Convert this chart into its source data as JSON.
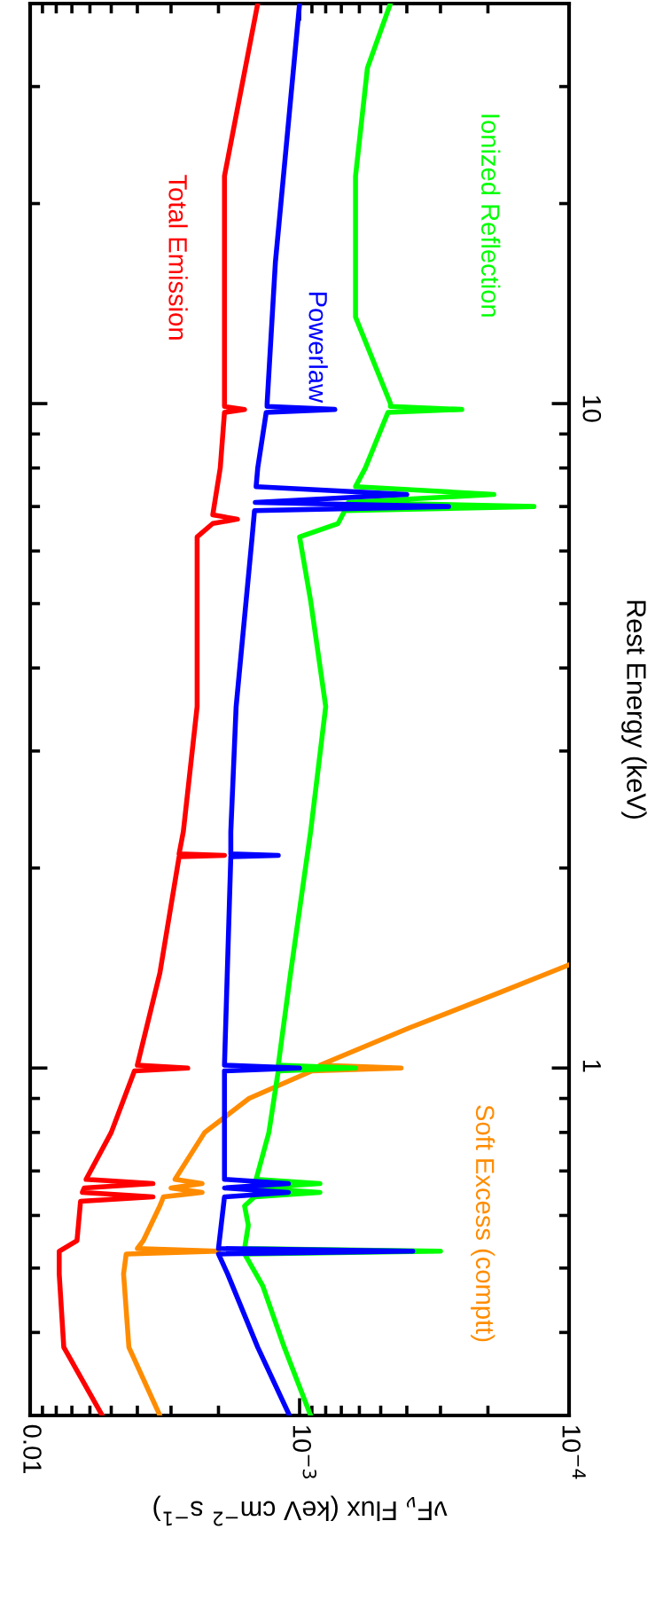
{
  "chart_data": {
    "type": "line",
    "xlabel": "νF$_{ν}$ Flux (keV cm$^{−2}$ s$^{−1}$)",
    "ylabel": "Rest Energy (keV)",
    "xlim": [
      0.01,
      0.0001
    ],
    "xticks": [
      0.01,
      {
        "value": 0.001,
        "label": "10$^{−3}$"
      },
      {
        "value": 0.0001,
        "label": "10$^{−4}$"
      }
    ],
    "ylim": [
      0.3,
      40
    ],
    "yticks": [
      1,
      10
    ],
    "log": "xy",
    "grid": false,
    "legend": false,
    "marker": "none",
    "line_style": "solid",
    "series": [
      {
        "name": "Total Emission",
        "color": "#ff0000",
        "values": [
          0.3,
          0.38,
          0.49,
          0.53,
          0.55,
          0.63,
          0.64,
          0.65,
          0.66,
          0.67,
          0.68,
          0.8,
          0.99,
          1.0,
          1.01,
          1.39,
          2.08,
          2.09,
          2.1,
          2.27,
          3.5,
          5.05,
          6.3,
          6.6,
          6.7,
          6.8,
          8.0,
          9.7,
          9.8,
          9.9,
          10,
          16.3,
          22,
          40
        ],
        "x": [
          0.0054,
          0.0075,
          0.0078,
          0.0078,
          0.0067,
          0.0065,
          0.0035,
          0.0064,
          0.0063,
          0.0035,
          0.0062,
          0.005,
          0.0041,
          0.0026,
          0.004,
          0.0033,
          0.0028,
          0.0019,
          0.0028,
          0.0027,
          0.0024,
          0.0024,
          0.0024,
          0.0021,
          0.0017,
          0.0021,
          0.00197,
          0.0019,
          0.0016,
          0.0019,
          0.0019,
          0.0019,
          0.0019,
          0.00143
        ]
      },
      {
        "name": "Powerlaw",
        "color": "#0000ff",
        "values": [
          0.3,
          0.38,
          0.49,
          0.525,
          0.53,
          0.535,
          0.64,
          0.65,
          0.66,
          0.67,
          0.68,
          0.7,
          0.99,
          1.0,
          1.01,
          2.08,
          2.09,
          2.1,
          2.27,
          3.5,
          6.3,
          6.9,
          7.0,
          7.1,
          7.3,
          7.5,
          8.0,
          9.7,
          9.8,
          9.9,
          10,
          16.3,
          40
        ],
        "x": [
          0.00109,
          0.00143,
          0.00185,
          0.002,
          0.00038,
          0.002,
          0.0019,
          0.0011,
          0.0019,
          0.0011,
          0.0019,
          0.0019,
          0.0019,
          0.001,
          0.0019,
          0.0018,
          0.0012,
          0.0018,
          0.0018,
          0.00172,
          0.0015,
          0.00147,
          0.00028,
          0.00146,
          0.0004,
          0.00145,
          0.00143,
          0.00133,
          0.00074,
          0.00132,
          0.00132,
          0.00123,
          0.001
        ]
      },
      {
        "name": "Ionized Reflection",
        "color": "#00ff00",
        "values": [
          0.3,
          0.38,
          0.47,
          0.525,
          0.53,
          0.535,
          0.58,
          0.62,
          0.64,
          0.65,
          0.66,
          0.67,
          0.68,
          0.8,
          0.99,
          1.0,
          1.01,
          1.39,
          2.27,
          3.5,
          5.05,
          6.3,
          6.6,
          6.9,
          7.0,
          7.1,
          7.3,
          7.5,
          8.0,
          9.7,
          9.8,
          9.9,
          10,
          13.5,
          22,
          32,
          40
        ],
        "x": [
          0.00091,
          0.00114,
          0.00137,
          0.0016,
          0.0003,
          0.0016,
          0.00155,
          0.0016,
          0.00147,
          0.00084,
          0.00147,
          0.00084,
          0.00145,
          0.0013,
          0.0012,
          0.00062,
          0.0012,
          0.00108,
          0.00091,
          0.0008,
          0.00091,
          0.001,
          0.00072,
          0.00068,
          0.000135,
          0.00066,
          0.00019,
          0.00062,
          0.00057,
          0.00047,
          0.00025,
          0.00046,
          0.00046,
          0.00062,
          0.00062,
          0.00056,
          0.00046
        ]
      },
      {
        "name": "Soft Excess (comptt)",
        "color": "#ff8c00",
        "values": [
          0.3,
          0.38,
          0.49,
          0.525,
          0.53,
          0.535,
          0.55,
          0.62,
          0.64,
          0.65,
          0.66,
          0.67,
          0.68,
          0.8,
          0.9,
          0.99,
          1.0,
          1.01,
          1.15,
          1.3,
          1.43
        ],
        "x": [
          0.0033,
          0.0043,
          0.0045,
          0.0044,
          0.002,
          0.004,
          0.0038,
          0.0033,
          0.0032,
          0.0023,
          0.003,
          0.0023,
          0.0029,
          0.00225,
          0.00154,
          0.0009,
          0.00042,
          0.00084,
          0.00039,
          0.00018,
          0.0001
        ]
      }
    ]
  }
}
